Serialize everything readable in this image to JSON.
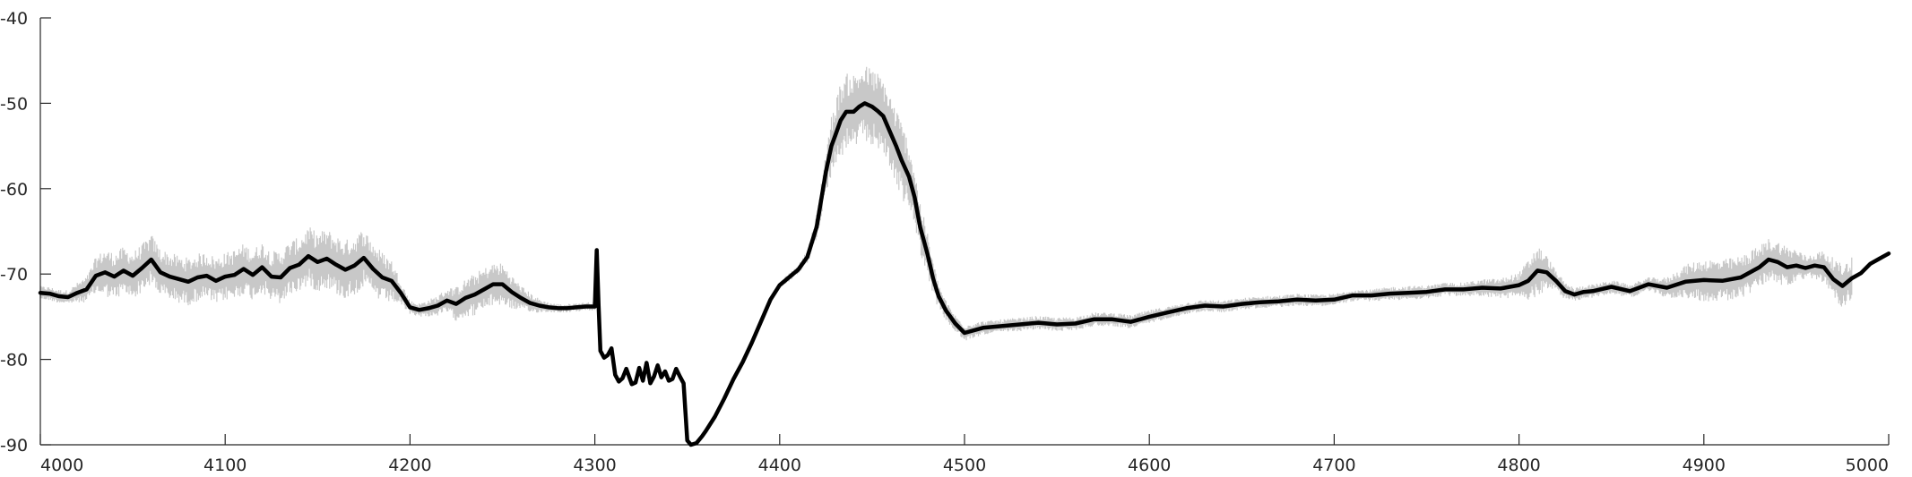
{
  "chart_data": {
    "type": "line",
    "title": "",
    "xlabel": "",
    "ylabel": "",
    "xlim": [
      4000,
      5000
    ],
    "ylim": [
      -90,
      -40
    ],
    "x_ticks": [
      4000,
      4100,
      4200,
      4300,
      4400,
      4500,
      4600,
      4700,
      4800,
      4900,
      5000
    ],
    "y_ticks": [
      -90,
      -80,
      -70,
      -60,
      -50,
      -40
    ],
    "grid": false,
    "legend": "none",
    "colors": {
      "mean": "#000000",
      "spread": "#c8c8c8",
      "axis": "#262626"
    },
    "series": [
      {
        "role": "mean",
        "x": [
          4000,
          4005,
          4010,
          4015,
          4020,
          4025,
          4030,
          4035,
          4040,
          4045,
          4050,
          4055,
          4060,
          4065,
          4070,
          4075,
          4080,
          4085,
          4090,
          4095,
          4100,
          4105,
          4110,
          4115,
          4120,
          4125,
          4130,
          4135,
          4140,
          4145,
          4150,
          4155,
          4160,
          4165,
          4170,
          4175,
          4180,
          4185,
          4190,
          4195,
          4200,
          4205,
          4210,
          4215,
          4220,
          4225,
          4230,
          4235,
          4240,
          4245,
          4250,
          4255,
          4260,
          4265,
          4270,
          4275,
          4280,
          4285,
          4290,
          4295,
          4300,
          4301,
          4302,
          4303,
          4305,
          4307,
          4309,
          4311,
          4313,
          4315,
          4317,
          4320,
          4322,
          4324,
          4326,
          4328,
          4330,
          4332,
          4334,
          4336,
          4338,
          4340,
          4342,
          4344,
          4346,
          4348,
          4350,
          4352,
          4355,
          4358,
          4360,
          4365,
          4370,
          4375,
          4380,
          4385,
          4390,
          4395,
          4400,
          4405,
          4410,
          4415,
          4420,
          4425,
          4428,
          4430,
          4433,
          4436,
          4440,
          4443,
          4446,
          4450,
          4453,
          4456,
          4460,
          4463,
          4466,
          4470,
          4473,
          4476,
          4480,
          4483,
          4486,
          4490,
          4495,
          4500,
          4510,
          4520,
          4530,
          4540,
          4550,
          4560,
          4570,
          4580,
          4590,
          4600,
          4610,
          4620,
          4630,
          4640,
          4650,
          4660,
          4670,
          4680,
          4690,
          4700,
          4710,
          4720,
          4730,
          4740,
          4750,
          4760,
          4770,
          4780,
          4790,
          4800,
          4805,
          4810,
          4815,
          4820,
          4825,
          4830,
          4835,
          4840,
          4850,
          4860,
          4870,
          4880,
          4890,
          4900,
          4910,
          4920,
          4930,
          4935,
          4940,
          4945,
          4950,
          4955,
          4960,
          4965,
          4970,
          4975,
          4980,
          4985,
          4990,
          4995,
          5000
        ],
        "y": [
          -72.2,
          -72.3,
          -72.6,
          -72.7,
          -72.2,
          -71.8,
          -70.2,
          -69.8,
          -70.3,
          -69.6,
          -70.2,
          -69.3,
          -68.3,
          -69.8,
          -70.3,
          -70.6,
          -70.9,
          -70.4,
          -70.2,
          -70.8,
          -70.3,
          -70.1,
          -69.4,
          -70.1,
          -69.2,
          -70.3,
          -70.4,
          -69.3,
          -68.9,
          -67.9,
          -68.6,
          -68.2,
          -68.9,
          -69.5,
          -69.0,
          -68.1,
          -69.4,
          -70.4,
          -70.8,
          -72.2,
          -73.9,
          -74.2,
          -74.0,
          -73.7,
          -73.1,
          -73.5,
          -72.8,
          -72.4,
          -71.8,
          -71.2,
          -71.2,
          -72.1,
          -72.8,
          -73.4,
          -73.7,
          -73.9,
          -74.0,
          -74.0,
          -73.9,
          -73.8,
          -73.8,
          -67.2,
          -73.5,
          -79.0,
          -79.8,
          -79.5,
          -78.7,
          -81.8,
          -82.6,
          -82.2,
          -81.1,
          -82.9,
          -82.7,
          -81.0,
          -82.5,
          -80.4,
          -82.8,
          -82.0,
          -80.7,
          -82.1,
          -81.4,
          -82.5,
          -82.3,
          -81.1,
          -82.0,
          -82.8,
          -89.5,
          -90.0,
          -89.8,
          -89.0,
          -88.4,
          -86.7,
          -84.6,
          -82.3,
          -80.3,
          -78.0,
          -75.5,
          -73.0,
          -71.3,
          -70.4,
          -69.5,
          -68.0,
          -64.5,
          -58.0,
          -55.0,
          -53.8,
          -52.0,
          -51.0,
          -51.0,
          -50.4,
          -50.0,
          -50.4,
          -50.9,
          -51.5,
          -53.5,
          -55.0,
          -56.7,
          -58.6,
          -61.0,
          -64.5,
          -67.7,
          -70.5,
          -72.6,
          -74.3,
          -75.8,
          -76.9,
          -76.3,
          -76.1,
          -75.9,
          -75.7,
          -75.9,
          -75.8,
          -75.3,
          -75.3,
          -75.6,
          -75.0,
          -74.5,
          -74.0,
          -73.7,
          -73.8,
          -73.5,
          -73.3,
          -73.2,
          -73.0,
          -73.1,
          -73.0,
          -72.5,
          -72.5,
          -72.3,
          -72.2,
          -72.1,
          -71.8,
          -71.8,
          -71.6,
          -71.7,
          -71.3,
          -70.8,
          -69.6,
          -69.8,
          -70.8,
          -72.0,
          -72.4,
          -72.1,
          -72.0,
          -71.5,
          -72.0,
          -71.2,
          -71.6,
          -70.9,
          -70.7,
          -70.8,
          -70.4,
          -69.2,
          -68.3,
          -68.6,
          -69.2,
          -69.0,
          -69.3,
          -69.0,
          -69.2,
          -70.6,
          -71.4,
          -70.5,
          -69.9,
          -68.8,
          -68.2,
          -67.6
        ]
      },
      {
        "role": "spread",
        "x": [
          4000,
          4005,
          4010,
          4015,
          4020,
          4025,
          4030,
          4035,
          4040,
          4045,
          4050,
          4055,
          4060,
          4065,
          4070,
          4075,
          4080,
          4085,
          4090,
          4095,
          4100,
          4105,
          4110,
          4115,
          4120,
          4125,
          4130,
          4135,
          4140,
          4145,
          4150,
          4155,
          4160,
          4165,
          4170,
          4175,
          4180,
          4185,
          4190,
          4195,
          4200,
          4205,
          4210,
          4215,
          4220,
          4225,
          4230,
          4235,
          4240,
          4245,
          4250,
          4255,
          4260,
          4265,
          4270,
          4275,
          4280,
          4285,
          4290,
          4295,
          4300,
          4301,
          4302,
          4303,
          4305,
          4307,
          4309,
          4311,
          4313,
          4315,
          4317,
          4320,
          4322,
          4324,
          4326,
          4328,
          4330,
          4332,
          4334,
          4336,
          4338,
          4340,
          4342,
          4344,
          4346,
          4348,
          4350,
          4352,
          4355,
          4358,
          4360,
          4365,
          4370,
          4375,
          4380,
          4385,
          4390,
          4395,
          4400,
          4405,
          4410,
          4415,
          4420,
          4425,
          4428,
          4430,
          4433,
          4436,
          4440,
          4443,
          4446,
          4450,
          4453,
          4456,
          4460,
          4463,
          4466,
          4470,
          4473,
          4476,
          4480,
          4483,
          4486,
          4490,
          4495,
          4500,
          4510,
          4520,
          4530,
          4540,
          4550,
          4560,
          4570,
          4580,
          4590,
          4600,
          4610,
          4620,
          4630,
          4640,
          4650,
          4660,
          4670,
          4680,
          4690,
          4700,
          4710,
          4720,
          4730,
          4740,
          4750,
          4760,
          4770,
          4780,
          4790,
          4800,
          4805,
          4810,
          4815,
          4820,
          4825,
          4830,
          4835,
          4840,
          4850,
          4860,
          4870,
          4880,
          4890,
          4900,
          4910,
          4920,
          4930,
          4935,
          4940,
          4945,
          4950,
          4955,
          4960,
          4965,
          4970,
          4975,
          4980,
          4985,
          4990,
          4995,
          5000
        ],
        "half_width": [
          0.8,
          0.8,
          0.8,
          0.8,
          1.2,
          1.5,
          2.2,
          2.8,
          2.8,
          2.8,
          2.8,
          2.8,
          3.0,
          2.8,
          2.8,
          2.8,
          2.8,
          2.8,
          2.8,
          2.8,
          2.8,
          3.0,
          3.0,
          3.0,
          3.0,
          3.0,
          3.2,
          3.2,
          3.2,
          3.5,
          3.5,
          3.5,
          3.5,
          3.5,
          3.5,
          3.5,
          3.2,
          3.0,
          2.5,
          1.5,
          0.8,
          0.8,
          1.0,
          1.2,
          1.5,
          2.0,
          2.2,
          2.5,
          2.5,
          2.5,
          2.5,
          2.0,
          1.5,
          1.2,
          0.8,
          0.6,
          0.5,
          0.5,
          0.5,
          0.5,
          0.5,
          0.3,
          0.3,
          0.3,
          0.3,
          0.3,
          0.3,
          0.3,
          0.3,
          0.3,
          0.3,
          0.3,
          0.3,
          0.3,
          0.3,
          0.3,
          0.3,
          0.3,
          0.3,
          0.3,
          0.3,
          0.3,
          0.3,
          0.3,
          0.3,
          0.3,
          0.2,
          0.2,
          0.2,
          0.2,
          0.2,
          0.2,
          0.2,
          0.2,
          0.2,
          0.2,
          0.2,
          0.2,
          0.3,
          0.5,
          0.5,
          0.8,
          1.5,
          2.5,
          3.5,
          4.0,
          4.5,
          4.5,
          4.5,
          4.5,
          4.5,
          4.5,
          4.5,
          4.5,
          4.5,
          4.5,
          4.5,
          4.0,
          3.5,
          3.0,
          2.5,
          2.0,
          1.5,
          1.2,
          1.0,
          1.0,
          0.8,
          0.8,
          0.8,
          0.8,
          0.8,
          0.8,
          0.8,
          0.8,
          0.8,
          0.8,
          0.7,
          0.7,
          0.7,
          0.7,
          0.7,
          0.7,
          0.7,
          0.7,
          0.7,
          0.7,
          0.7,
          0.7,
          0.8,
          0.8,
          0.8,
          0.8,
          0.8,
          1.0,
          1.2,
          1.5,
          2.5,
          3.0,
          2.0,
          1.2,
          1.0,
          0.8,
          0.8,
          0.8,
          0.8,
          0.8,
          0.8,
          1.2,
          2.0,
          2.5,
          2.5,
          2.5,
          2.5,
          2.5,
          2.5,
          2.5,
          2.0,
          1.5,
          1.5,
          2.0,
          2.5,
          2.5,
          2.5
        ]
      }
    ]
  }
}
